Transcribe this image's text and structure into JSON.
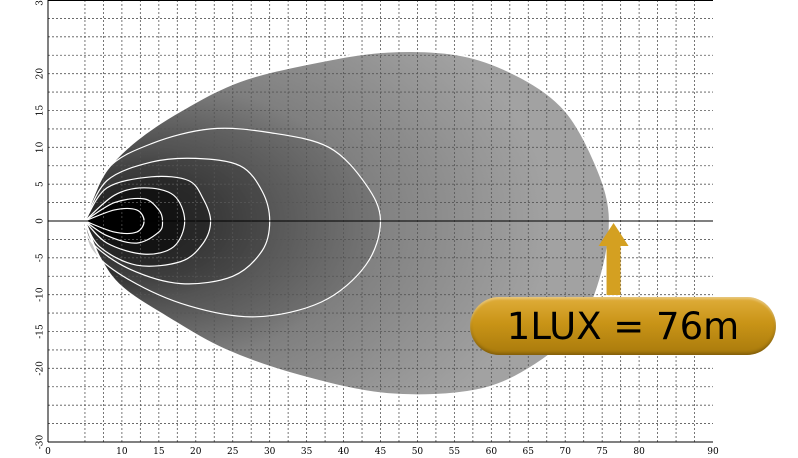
{
  "chart_data": {
    "type": "heatmap",
    "title": "",
    "xlabel": "",
    "ylabel": "",
    "xlim": [
      0,
      90
    ],
    "ylim": [
      -30,
      30
    ],
    "x_ticks": [
      0,
      10,
      15,
      20,
      25,
      30,
      35,
      40,
      45,
      50,
      55,
      60,
      65,
      70,
      75,
      80,
      90
    ],
    "y_ticks": [
      30,
      20,
      15,
      10,
      5,
      0,
      -5,
      -10,
      -15,
      -20,
      -30
    ],
    "grid": true,
    "series": [
      {
        "values": [
          {
            "x": 5,
            "y": 0
          },
          {
            "x": 6,
            "y": 3
          },
          {
            "x": 8,
            "y": 7
          },
          {
            "x": 12,
            "y": 11
          },
          {
            "x": 18,
            "y": 15
          },
          {
            "x": 26,
            "y": 19
          },
          {
            "x": 36,
            "y": 21.5
          },
          {
            "x": 46,
            "y": 23
          },
          {
            "x": 56,
            "y": 22.5
          },
          {
            "x": 64,
            "y": 19.5
          },
          {
            "x": 70,
            "y": 15
          },
          {
            "x": 74,
            "y": 8
          },
          {
            "x": 76,
            "y": 1
          },
          {
            "x": 75,
            "y": -7
          },
          {
            "x": 72,
            "y": -14
          },
          {
            "x": 66,
            "y": -19.5
          },
          {
            "x": 58,
            "y": -23
          },
          {
            "x": 46,
            "y": -23.5
          },
          {
            "x": 34,
            "y": -21
          },
          {
            "x": 24,
            "y": -17.5
          },
          {
            "x": 16,
            "y": -13
          },
          {
            "x": 10,
            "y": -9
          },
          {
            "x": 7,
            "y": -5
          },
          {
            "x": 5,
            "y": 0
          }
        ]
      },
      {
        "values": [
          {
            "x": 5,
            "y": 0
          },
          {
            "x": 8,
            "y": 7
          },
          {
            "x": 14,
            "y": 10.5
          },
          {
            "x": 22,
            "y": 12.5
          },
          {
            "x": 30,
            "y": 12
          },
          {
            "x": 38,
            "y": 10
          },
          {
            "x": 43,
            "y": 5
          },
          {
            "x": 45,
            "y": 0
          },
          {
            "x": 43,
            "y": -6
          },
          {
            "x": 37,
            "y": -11
          },
          {
            "x": 28,
            "y": -13
          },
          {
            "x": 19,
            "y": -11.5
          },
          {
            "x": 11,
            "y": -8
          },
          {
            "x": 6,
            "y": -4
          },
          {
            "x": 5,
            "y": 0
          }
        ]
      },
      {
        "values": [
          {
            "x": 5,
            "y": 0
          },
          {
            "x": 8,
            "y": 5.5
          },
          {
            "x": 14,
            "y": 8
          },
          {
            "x": 20,
            "y": 8.5
          },
          {
            "x": 26,
            "y": 7.5
          },
          {
            "x": 29,
            "y": 4
          },
          {
            "x": 30,
            "y": 0
          },
          {
            "x": 29,
            "y": -4
          },
          {
            "x": 25,
            "y": -7.5
          },
          {
            "x": 18,
            "y": -8.5
          },
          {
            "x": 11,
            "y": -6.5
          },
          {
            "x": 6,
            "y": -3
          },
          {
            "x": 5,
            "y": 0
          }
        ]
      },
      {
        "values": [
          {
            "x": 5,
            "y": 0
          },
          {
            "x": 8,
            "y": 4.5
          },
          {
            "x": 14,
            "y": 6
          },
          {
            "x": 19,
            "y": 5.5
          },
          {
            "x": 21,
            "y": 3
          },
          {
            "x": 22,
            "y": 0
          },
          {
            "x": 21,
            "y": -3
          },
          {
            "x": 18,
            "y": -5.5
          },
          {
            "x": 12,
            "y": -6
          },
          {
            "x": 7,
            "y": -3.5
          },
          {
            "x": 5,
            "y": 0
          }
        ]
      },
      {
        "values": [
          {
            "x": 5,
            "y": 0
          },
          {
            "x": 9,
            "y": 3.5
          },
          {
            "x": 13,
            "y": 4.5
          },
          {
            "x": 17,
            "y": 3.5
          },
          {
            "x": 18.5,
            "y": 0
          },
          {
            "x": 17,
            "y": -3.5
          },
          {
            "x": 13,
            "y": -4.5
          },
          {
            "x": 8,
            "y": -3
          },
          {
            "x": 5,
            "y": 0
          }
        ]
      },
      {
        "values": [
          {
            "x": 5,
            "y": 0
          },
          {
            "x": 9,
            "y": 2.5
          },
          {
            "x": 13,
            "y": 3
          },
          {
            "x": 15,
            "y": 1.5
          },
          {
            "x": 15.5,
            "y": 0
          },
          {
            "x": 15,
            "y": -1.5
          },
          {
            "x": 12,
            "y": -3
          },
          {
            "x": 8,
            "y": -2
          },
          {
            "x": 5,
            "y": 0
          }
        ]
      },
      {
        "values": [
          {
            "x": 5,
            "y": 0
          },
          {
            "x": 9,
            "y": 1.5
          },
          {
            "x": 12,
            "y": 1.5
          },
          {
            "x": 13,
            "y": 0
          },
          {
            "x": 12,
            "y": -1.5
          },
          {
            "x": 9,
            "y": -1.5
          },
          {
            "x": 5,
            "y": 0
          }
        ]
      }
    ],
    "annotations": [
      {
        "text": "1LUX = 76m",
        "x": 76,
        "y": 0
      }
    ]
  },
  "colors": {
    "outer_fill": "#9a9a9a",
    "mid_fill": "#727272",
    "inner_fill": "#2a2a2a",
    "core_fill": "#000000",
    "contour": "#ffffff",
    "grid": "#555555",
    "arrow": "#d4a021",
    "callout": "#c99417"
  },
  "callout": {
    "text": "1LUX = 76m"
  }
}
